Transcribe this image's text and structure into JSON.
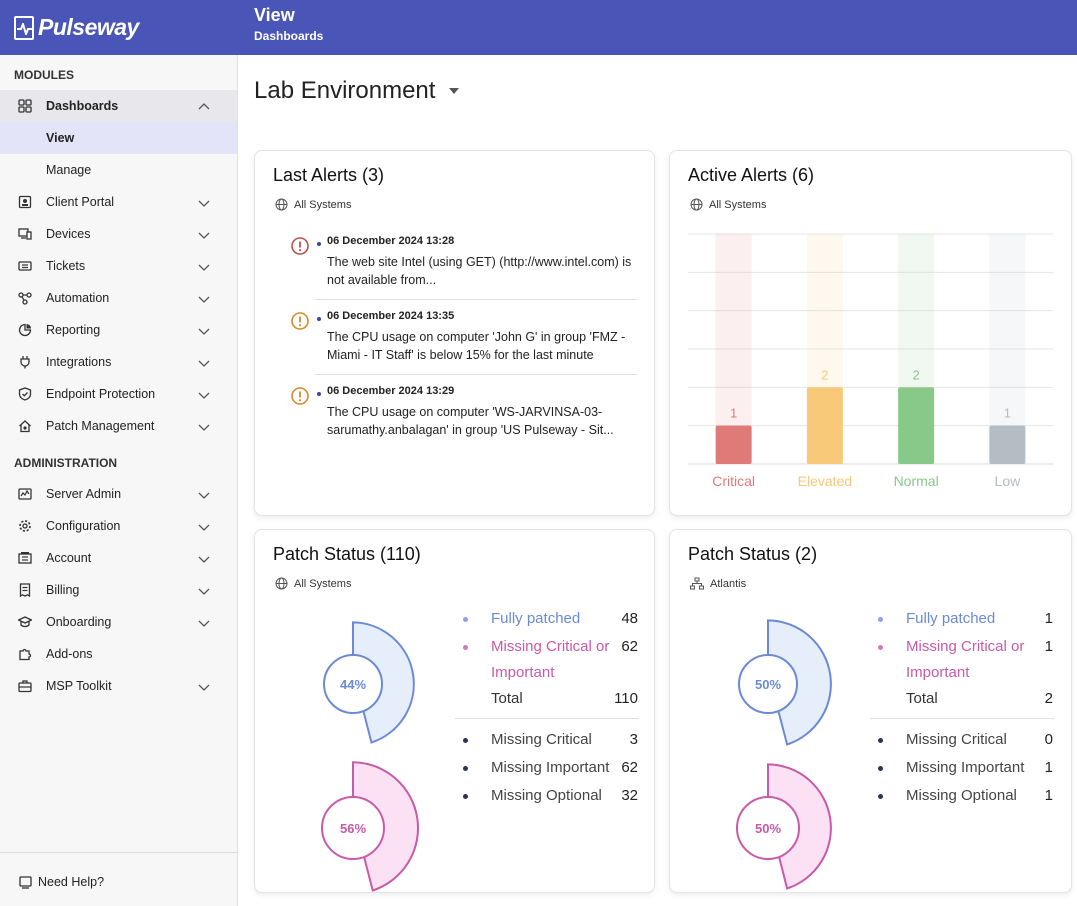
{
  "brand": {
    "name": "Pulseway"
  },
  "header": {
    "title": "View",
    "subtitle": "Dashboards"
  },
  "sidebar": {
    "modules_title": "MODULES",
    "admin_title": "ADMINISTRATION",
    "modules": [
      {
        "label": "Dashboards",
        "icon": "dashboard-icon",
        "expanded": true
      },
      {
        "label": "View",
        "sub": true,
        "current": true
      },
      {
        "label": "Manage",
        "sub": true
      },
      {
        "label": "Client Portal",
        "icon": "portal-icon"
      },
      {
        "label": "Devices",
        "icon": "devices-icon"
      },
      {
        "label": "Tickets",
        "icon": "ticket-icon"
      },
      {
        "label": "Automation",
        "icon": "automation-icon"
      },
      {
        "label": "Reporting",
        "icon": "reporting-icon"
      },
      {
        "label": "Integrations",
        "icon": "plug-icon"
      },
      {
        "label": "Endpoint Protection",
        "icon": "shield-icon"
      },
      {
        "label": "Patch Management",
        "icon": "home-gear-icon"
      }
    ],
    "admin": [
      {
        "label": "Server Admin",
        "icon": "server-icon"
      },
      {
        "label": "Configuration",
        "icon": "gear-icon"
      },
      {
        "label": "Account",
        "icon": "account-icon"
      },
      {
        "label": "Billing",
        "icon": "billing-icon"
      },
      {
        "label": "Onboarding",
        "icon": "graduation-icon"
      },
      {
        "label": "Add-ons",
        "icon": "puzzle-icon",
        "no_chevron": true
      },
      {
        "label": "MSP Toolkit",
        "icon": "toolkit-icon"
      }
    ],
    "help": "Need Help?"
  },
  "main": {
    "environment": "Lab Environment",
    "last_alerts": {
      "title": "Last Alerts (3)",
      "scope": "All Systems",
      "items": [
        {
          "date": "06 December 2024 13:28",
          "text": "The web site Intel (using GET) (http://www.intel.com) is not available from...",
          "severity": "critical",
          "color": "#c0504d"
        },
        {
          "date": "06 December 2024 13:35",
          "text": "The CPU usage on computer 'John G' in group 'FMZ - Miami - IT Staff' is below 15% for the last minute",
          "severity": "elevated",
          "color": "#d98a2b"
        },
        {
          "date": "06 December 2024 13:29",
          "text": "The CPU usage on computer 'WS-JARVINSA-03-sarumathy.anbalagan' in group 'US Pulseway - Sit...",
          "severity": "elevated",
          "color": "#d98a2b"
        }
      ]
    },
    "active_alerts": {
      "title": "Active Alerts (6)",
      "scope": "All Systems"
    },
    "patch_all": {
      "title": "Patch Status (110)",
      "scope": "All Systems",
      "fully_patched_label": "Fully patched",
      "fully_patched": "48",
      "missing_label": "Missing Critical or Important",
      "missing": "62",
      "total_label": "Total",
      "total": "110",
      "missing_critical_label": "Missing Critical",
      "missing_critical": "3",
      "missing_important_label": "Missing Important",
      "missing_important": "62",
      "missing_optional_label": "Missing Optional",
      "missing_optional": "32",
      "patched_pct": "44%",
      "missing_pct": "56%",
      "patched_fraction": 0.44,
      "missing_fraction": 0.56
    },
    "patch_atlantis": {
      "title": "Patch Status (2)",
      "scope": "Atlantis",
      "fully_patched_label": "Fully patched",
      "fully_patched": "1",
      "missing_label": "Missing Critical or Important",
      "missing": "1",
      "total_label": "Total",
      "total": "2",
      "missing_critical_label": "Missing Critical",
      "missing_critical": "0",
      "missing_important_label": "Missing Important",
      "missing_important": "1",
      "missing_optional_label": "Missing Optional",
      "missing_optional": "1",
      "patched_pct": "50%",
      "missing_pct": "50%",
      "patched_fraction": 0.5,
      "missing_fraction": 0.5
    }
  },
  "colors": {
    "accent": "#4a55b8",
    "critical": "#e07a79",
    "elevated": "#f7c978",
    "normal": "#88c98a",
    "low": "#b4bcc4",
    "patched": "#6b8ad6",
    "missing": "#c85aa8"
  },
  "chart_data": {
    "type": "bar",
    "categories": [
      "Critical",
      "Elevated",
      "Normal",
      "Low"
    ],
    "values": [
      1,
      2,
      2,
      1
    ],
    "ylim": [
      0,
      6
    ],
    "grid": true,
    "value_labels": true
  }
}
